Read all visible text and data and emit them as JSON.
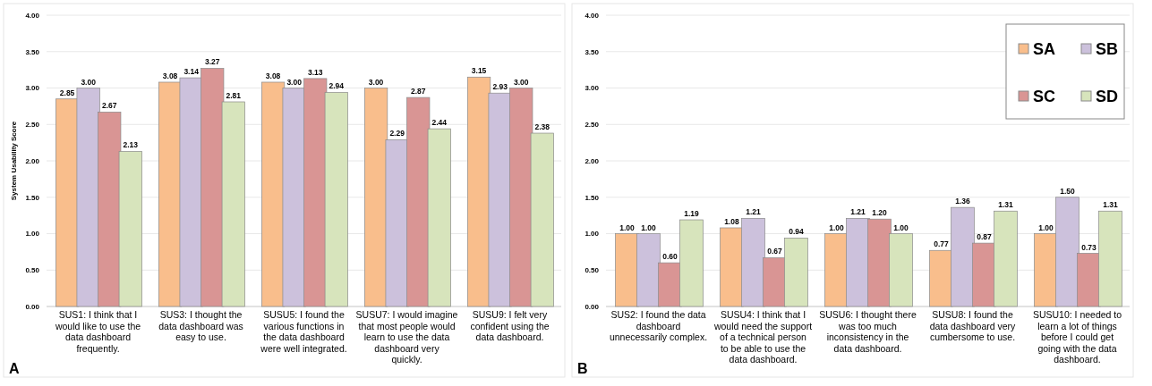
{
  "chart_data": [
    {
      "type": "bar",
      "ylabel": "System Usability Score",
      "categories": [
        "SUS1: I think that I would like to use the data dashboard frequently.",
        "SUS3: I thought the data dashboard was easy to use.",
        "SUSU5: I found the various functions in the data dashboard were well integrated.",
        "SUSU7: I would imagine that most people would learn to use the data dashboard very quickly.",
        "SUSU9: I felt very confident using the data dashboard."
      ],
      "series": [
        {
          "color": "#f9be8c",
          "values": [
            2.85,
            3.08,
            3.08,
            3.0,
            3.15
          ],
          "value_labels": [
            "2.85",
            "3.08",
            "3.08",
            "3.00",
            "3.15"
          ]
        },
        {
          "color": "#ccc1dc",
          "values": [
            3.0,
            3.14,
            3.0,
            2.29,
            2.93
          ],
          "value_labels": [
            "3.00",
            "3.14",
            "3.00",
            "2.29",
            "2.93"
          ]
        },
        {
          "color": "#d99594",
          "values": [
            2.67,
            3.27,
            3.13,
            2.87,
            3.0
          ],
          "value_labels": [
            "2.67",
            "3.27",
            "3.13",
            "2.87",
            "3.00"
          ]
        },
        {
          "color": "#d7e4bc",
          "values": [
            2.13,
            2.81,
            2.94,
            2.44,
            2.38
          ],
          "value_labels": [
            "2.13",
            "2.81",
            "2.94",
            "2.44",
            "2.38"
          ]
        }
      ],
      "ylim": [
        0,
        4
      ],
      "yticks": [
        {
          "value": 0,
          "label": "0.00"
        },
        {
          "value": 0.5,
          "label": "0.50"
        },
        {
          "value": 1,
          "label": "1.00"
        },
        {
          "value": 1.5,
          "label": "1.50"
        },
        {
          "value": 2,
          "label": "2.00"
        },
        {
          "value": 2.5,
          "label": "2.50"
        },
        {
          "value": 3,
          "label": "3.00"
        },
        {
          "value": 3.5,
          "label": "3.50"
        },
        {
          "value": 4,
          "label": "4.00"
        }
      ],
      "grid": "y",
      "annotations": [
        "A"
      ]
    },
    {
      "type": "bar",
      "categories": [
        "SUS2: I found the data dashboard unnecessarily complex.",
        "SUSU4: I think that I would need the support of a technical person to be able to use the data dashboard.",
        "SUSU6: I thought there was too much inconsistency in the data dashboard.",
        "SUSU8: I found the data dashboard very cumbersome to use.",
        "SUSU10: I needed to learn a lot of things before I could get going with the data dashboard."
      ],
      "series": [
        {
          "name": "SA",
          "color": "#f9be8c",
          "values": [
            1.0,
            1.08,
            1.0,
            0.77,
            1.0
          ],
          "value_labels": [
            "1.00",
            "1.08",
            "1.00",
            "0.77",
            "1.00"
          ]
        },
        {
          "name": "SB",
          "color": "#ccc1dc",
          "values": [
            1.0,
            1.21,
            1.21,
            1.36,
            1.5
          ],
          "value_labels": [
            "1.00",
            "1.21",
            "1.21",
            "1.36",
            "1.50"
          ]
        },
        {
          "name": "SC",
          "color": "#d99594",
          "values": [
            0.6,
            0.67,
            1.2,
            0.87,
            0.73
          ],
          "value_labels": [
            "0.60",
            "0.67",
            "1.20",
            "0.87",
            "0.73"
          ]
        },
        {
          "name": "SD",
          "color": "#d7e4bc",
          "values": [
            1.19,
            0.94,
            1.0,
            1.31,
            1.31
          ],
          "value_labels": [
            "1.19",
            "0.94",
            "1.00",
            "1.31",
            "1.31"
          ]
        }
      ],
      "ylim": [
        0,
        4
      ],
      "yticks": [
        {
          "value": 0,
          "label": "0.00"
        },
        {
          "value": 0.5,
          "label": "0.50"
        },
        {
          "value": 1,
          "label": "1.00"
        },
        {
          "value": 1.5,
          "label": "1.50"
        },
        {
          "value": 2,
          "label": "2.00"
        },
        {
          "value": 2.5,
          "label": "2.50"
        },
        {
          "value": 3,
          "label": "3.00"
        },
        {
          "value": 3.5,
          "label": "3.50"
        },
        {
          "value": 4,
          "label": "4.00"
        }
      ],
      "grid": "y",
      "legend": "top right",
      "annotations": [
        "B"
      ]
    }
  ]
}
